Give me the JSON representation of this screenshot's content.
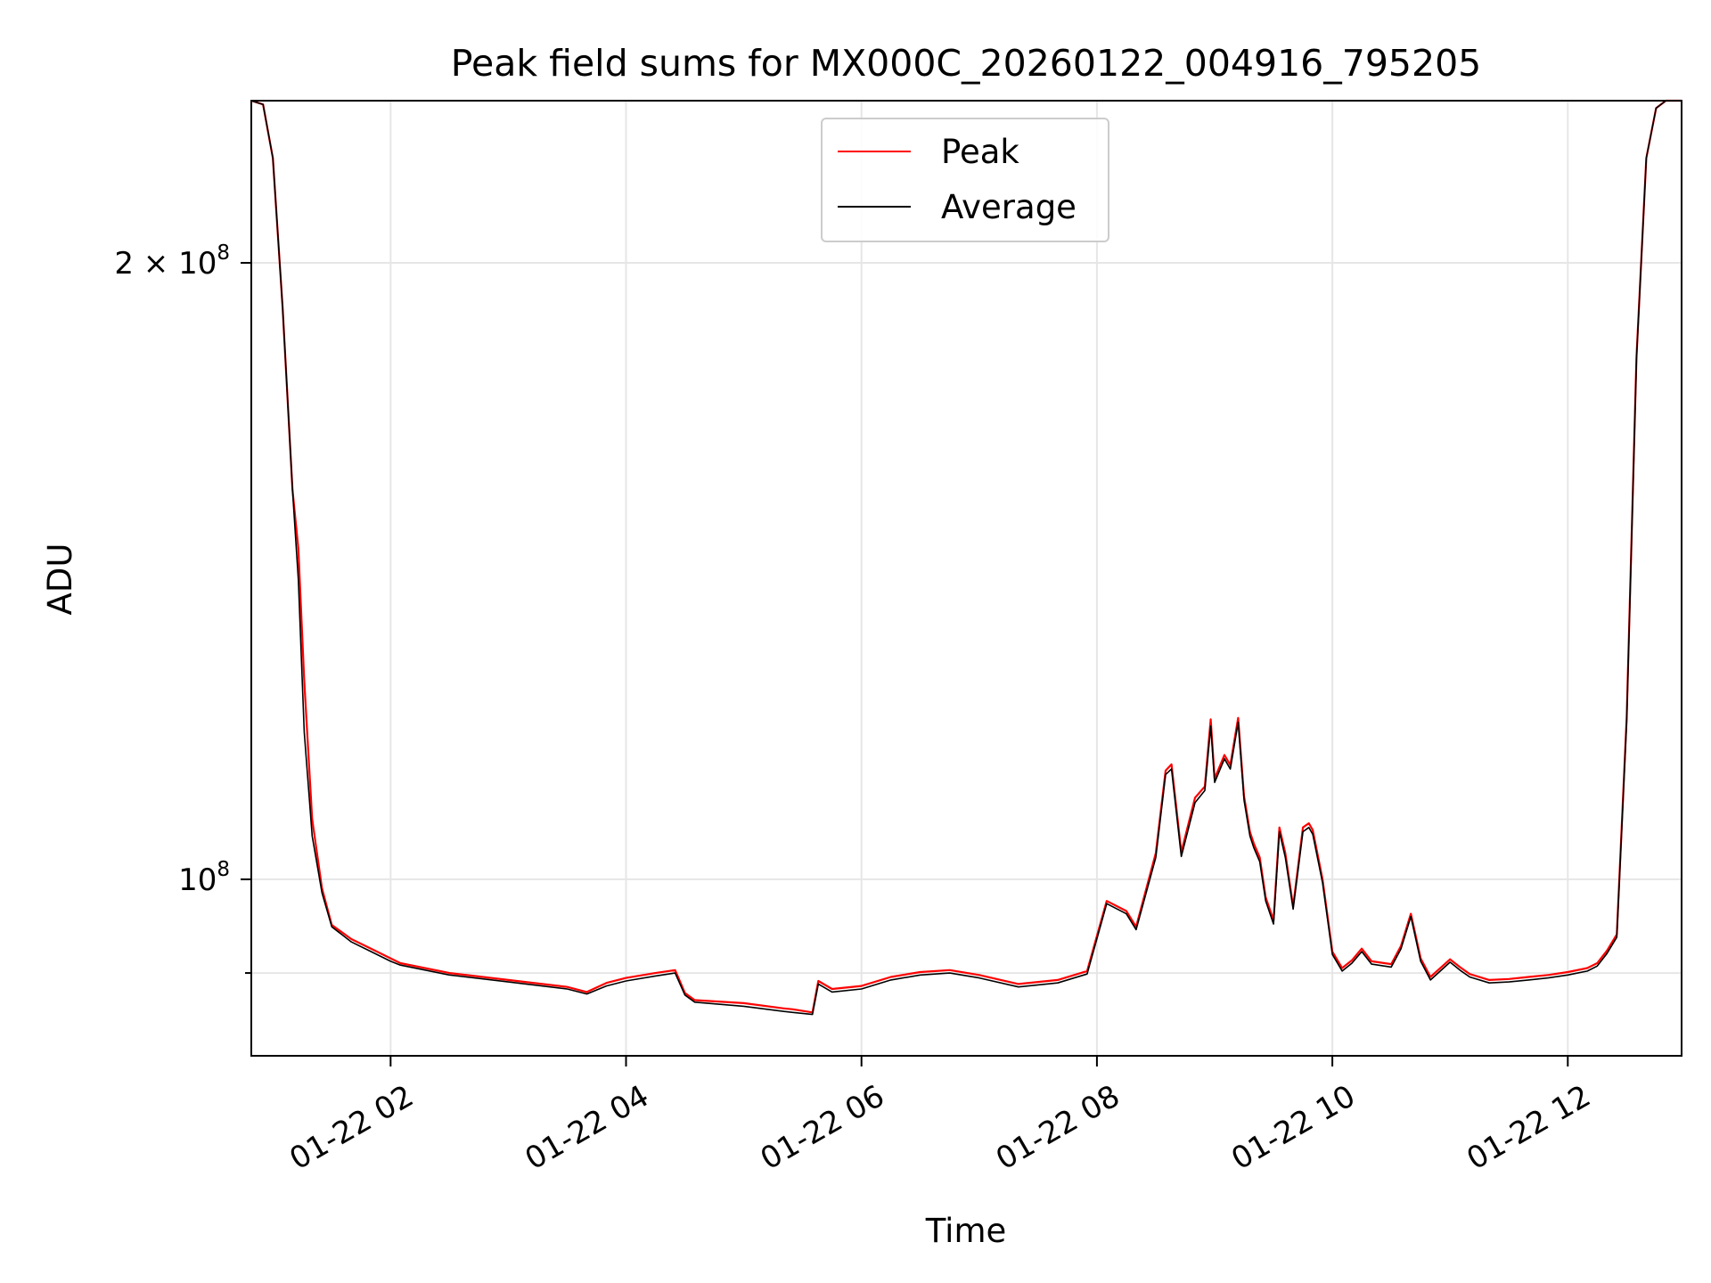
{
  "chart_data": {
    "type": "line",
    "title": "Peak field sums for MX000C_20260122_004916_795205",
    "xlabel": "Time",
    "ylabel": "ADU",
    "yscale": "log",
    "grid": true,
    "legend_position": "top-center",
    "xlim": [
      "2026-01-22 00:49",
      "2026-01-22 12:58"
    ],
    "ylim": [
      82000000,
      240000000
    ],
    "x_ticks": [
      "01-22 02",
      "01-22 04",
      "01-22 06",
      "01-22 08",
      "01-22 10",
      "01-22 12"
    ],
    "y_ticks": [
      {
        "value": 200000000,
        "label": "2 × 10^8",
        "mantissa": "2 × 10",
        "exp": "8"
      },
      {
        "value": 100000000,
        "label": "10^8",
        "mantissa": "10",
        "exp": "8"
      },
      {
        "value": 90000000,
        "label": "",
        "mantissa": "",
        "exp": ""
      }
    ],
    "x": [
      "00:49",
      "00:55",
      "01:00",
      "01:05",
      "01:10",
      "01:13",
      "01:16",
      "01:20",
      "01:25",
      "01:30",
      "01:40",
      "01:50",
      "02:00",
      "02:05",
      "02:30",
      "03:00",
      "03:30",
      "03:40",
      "03:50",
      "04:00",
      "04:15",
      "04:25",
      "04:30",
      "04:35",
      "05:00",
      "05:20",
      "05:25",
      "05:35",
      "05:38",
      "05:45",
      "06:00",
      "06:15",
      "06:30",
      "06:45",
      "07:00",
      "07:20",
      "07:40",
      "07:55",
      "08:05",
      "08:15",
      "08:20",
      "08:30",
      "08:35",
      "08:38",
      "08:43",
      "08:50",
      "08:55",
      "08:58",
      "09:00",
      "09:05",
      "09:08",
      "09:12",
      "09:15",
      "09:18",
      "09:20",
      "09:23",
      "09:26",
      "09:30",
      "09:33",
      "09:36",
      "09:40",
      "09:45",
      "09:48",
      "09:50",
      "09:55",
      "10:00",
      "10:05",
      "10:10",
      "10:15",
      "10:20",
      "10:30",
      "10:35",
      "10:40",
      "10:45",
      "10:50",
      "11:00",
      "11:05",
      "11:10",
      "11:20",
      "11:30",
      "11:40",
      "11:50",
      "12:00",
      "12:10",
      "12:15",
      "12:20",
      "12:25",
      "12:30",
      "12:35",
      "12:40",
      "12:45",
      "12:50",
      "12:58"
    ],
    "series": [
      {
        "name": "Peak",
        "color": "#ff0000",
        "values": [
          240000000,
          239000000,
          225000000,
          190000000,
          155000000,
          145000000,
          125000000,
          107000000,
          99000000,
          95000000,
          93500000,
          92500000,
          91500000,
          91000000,
          90000000,
          89300000,
          88600000,
          88100000,
          89000000,
          89500000,
          90000000,
          90300000,
          88000000,
          87300000,
          87000000,
          86500000,
          86400000,
          86100000,
          89200000,
          88400000,
          88700000,
          89600000,
          90100000,
          90300000,
          89800000,
          88900000,
          89300000,
          90200000,
          97600000,
          96500000,
          94800000,
          103000000,
          113000000,
          113800000,
          103100000,
          109600000,
          111000000,
          119700000,
          112000000,
          115000000,
          113700000,
          119900000,
          109800000,
          105500000,
          104100000,
          102500000,
          98000000,
          95500000,
          106000000,
          103000000,
          97000000,
          106000000,
          106500000,
          105700000,
          100000000,
          92200000,
          90500000,
          91300000,
          92500000,
          91200000,
          90900000,
          92800000,
          96200000,
          91500000,
          89600000,
          91400000,
          90600000,
          89900000,
          89300000,
          89400000,
          89600000,
          89800000,
          90100000,
          90500000,
          91000000,
          92300000,
          94000000,
          120000000,
          180000000,
          225000000,
          238000000,
          240000000,
          240000000
        ]
      },
      {
        "name": "Average",
        "color": "#000000",
        "values": [
          240000000,
          239000000,
          225000000,
          190000000,
          155000000,
          140000000,
          118000000,
          105000000,
          98500000,
          94800000,
          93200000,
          92200000,
          91200000,
          90800000,
          89800000,
          89100000,
          88400000,
          87900000,
          88700000,
          89200000,
          89700000,
          90000000,
          87800000,
          87100000,
          86700000,
          86200000,
          86100000,
          85900000,
          88900000,
          88100000,
          88400000,
          89300000,
          89800000,
          90000000,
          89500000,
          88600000,
          89000000,
          89900000,
          97300000,
          96200000,
          94500000,
          102500000,
          112500000,
          113200000,
          102600000,
          109000000,
          110500000,
          118800000,
          111500000,
          114500000,
          113200000,
          119300000,
          109300000,
          105000000,
          103600000,
          102000000,
          97600000,
          95100000,
          105500000,
          102500000,
          96700000,
          105500000,
          106000000,
          105200000,
          99600000,
          91900000,
          90200000,
          91000000,
          92200000,
          90900000,
          90600000,
          92500000,
          95900000,
          91200000,
          89300000,
          91100000,
          90300000,
          89600000,
          89000000,
          89100000,
          89300000,
          89500000,
          89800000,
          90200000,
          90700000,
          92000000,
          93700000,
          119500000,
          179500000,
          225000000,
          238000000,
          240000000,
          240000000
        ]
      }
    ]
  }
}
